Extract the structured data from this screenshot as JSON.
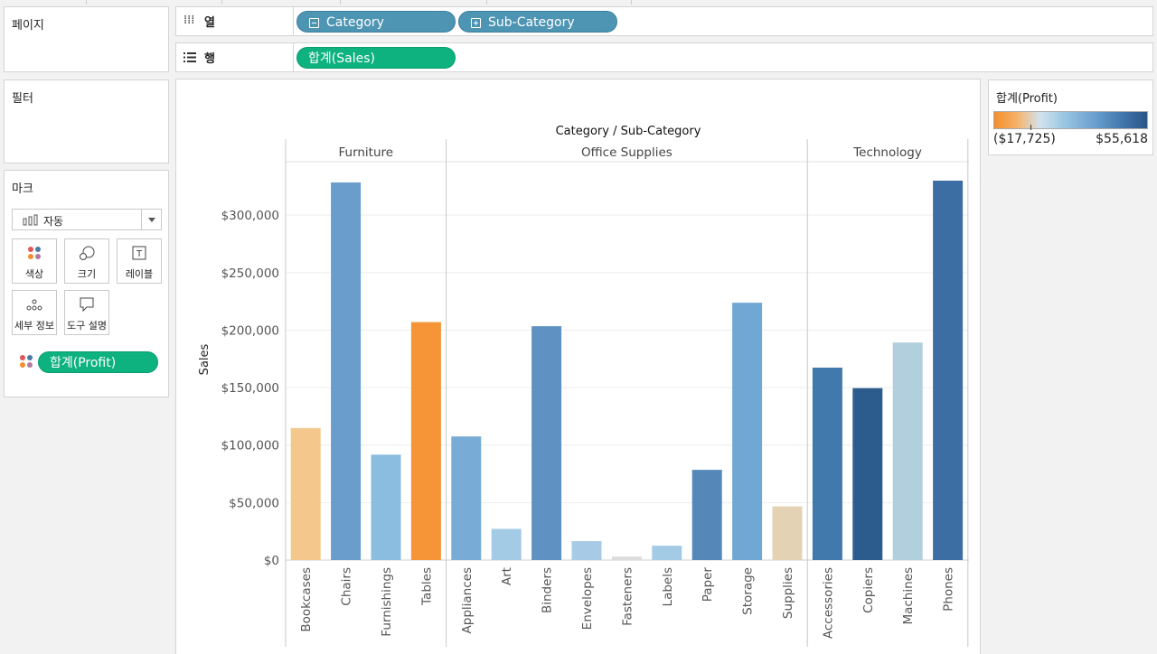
{
  "pages_card": {
    "title": "페이지"
  },
  "filters_card": {
    "title": "필터"
  },
  "marks_card": {
    "title": "마크",
    "mark_type": "자동",
    "buttons": [
      {
        "label": "색상",
        "icon": "color-icon"
      },
      {
        "label": "크기",
        "icon": "size-icon"
      },
      {
        "label": "레이블",
        "icon": "label-icon"
      },
      {
        "label": "세부 정보",
        "icon": "detail-icon"
      },
      {
        "label": "도구 설명",
        "icon": "tooltip-icon"
      }
    ],
    "color_pill": "합계(Profit)"
  },
  "columns_shelf": {
    "label": "열",
    "pills": [
      "Category",
      "Sub-Category"
    ]
  },
  "rows_shelf": {
    "label": "행",
    "pills": [
      "합계(Sales)"
    ]
  },
  "legend": {
    "title": "합계(Profit)",
    "min": "($17,725)",
    "max": "$55,618"
  },
  "chart_data": {
    "type": "bar",
    "title": "Category / Sub-Category",
    "ylabel": "Sales",
    "ylim": [
      0,
      330000
    ],
    "y_ticks": [
      "$0",
      "$50,000",
      "$100,000",
      "$150,000",
      "$200,000",
      "$250,000",
      "$300,000"
    ],
    "groups": [
      {
        "name": "Furniture",
        "categories": [
          "Bookcases",
          "Chairs",
          "Furnishings",
          "Tables"
        ],
        "values": [
          114880,
          328449,
          91705,
          206966
        ],
        "colors": [
          "#f4c88c",
          "#6a9dcb",
          "#8bbde0",
          "#f59537"
        ]
      },
      {
        "name": "Office Supplies",
        "categories": [
          "Appliances",
          "Art",
          "Binders",
          "Envelopes",
          "Fasteners",
          "Labels",
          "Paper",
          "Storage",
          "Supplies"
        ],
        "values": [
          107532,
          27119,
          203413,
          16476,
          3024,
          12486,
          78479,
          223844,
          46674
        ],
        "colors": [
          "#78acd6",
          "#a4cbe6",
          "#5f92c2",
          "#a7cbe6",
          "#dcdcdc",
          "#a4cbe6",
          "#5588b9",
          "#71a7d3",
          "#e3d3b4"
        ]
      },
      {
        "name": "Technology",
        "categories": [
          "Accessories",
          "Copiers",
          "Machines",
          "Phones"
        ],
        "values": [
          167380,
          149528,
          189239,
          330007
        ],
        "colors": [
          "#4279ad",
          "#2c5c8e",
          "#b2cfdd",
          "#3d6ea3"
        ]
      }
    ]
  }
}
